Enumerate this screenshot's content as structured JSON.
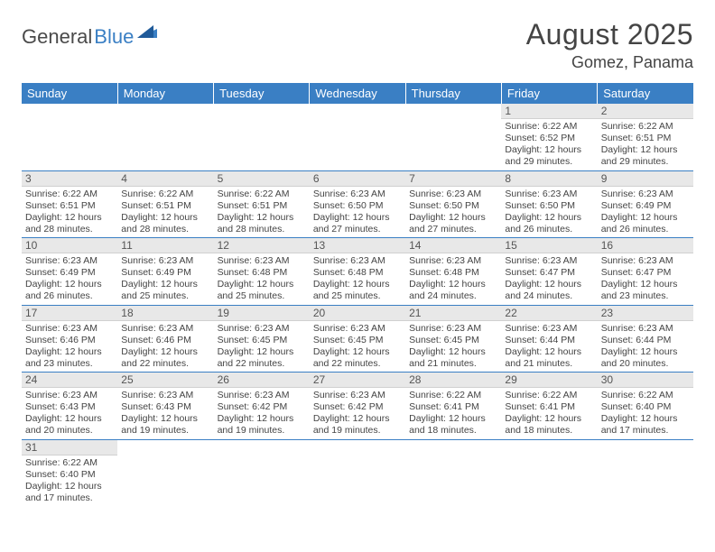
{
  "brand": {
    "part1": "General",
    "part2": "Blue"
  },
  "title": "August 2025",
  "location": "Gomez, Panama",
  "colors": {
    "header_bg": "#3a7fc4",
    "header_text": "#ffffff",
    "daynum_bg": "#e8e8e8",
    "text": "#444444",
    "row_border": "#3a7fc4"
  },
  "weekdays": [
    "Sunday",
    "Monday",
    "Tuesday",
    "Wednesday",
    "Thursday",
    "Friday",
    "Saturday"
  ],
  "weeks": [
    [
      null,
      null,
      null,
      null,
      null,
      {
        "n": "1",
        "sr": "6:22 AM",
        "ss": "6:52 PM",
        "dl": "12 hours and 29 minutes."
      },
      {
        "n": "2",
        "sr": "6:22 AM",
        "ss": "6:51 PM",
        "dl": "12 hours and 29 minutes."
      }
    ],
    [
      {
        "n": "3",
        "sr": "6:22 AM",
        "ss": "6:51 PM",
        "dl": "12 hours and 28 minutes."
      },
      {
        "n": "4",
        "sr": "6:22 AM",
        "ss": "6:51 PM",
        "dl": "12 hours and 28 minutes."
      },
      {
        "n": "5",
        "sr": "6:22 AM",
        "ss": "6:51 PM",
        "dl": "12 hours and 28 minutes."
      },
      {
        "n": "6",
        "sr": "6:23 AM",
        "ss": "6:50 PM",
        "dl": "12 hours and 27 minutes."
      },
      {
        "n": "7",
        "sr": "6:23 AM",
        "ss": "6:50 PM",
        "dl": "12 hours and 27 minutes."
      },
      {
        "n": "8",
        "sr": "6:23 AM",
        "ss": "6:50 PM",
        "dl": "12 hours and 26 minutes."
      },
      {
        "n": "9",
        "sr": "6:23 AM",
        "ss": "6:49 PM",
        "dl": "12 hours and 26 minutes."
      }
    ],
    [
      {
        "n": "10",
        "sr": "6:23 AM",
        "ss": "6:49 PM",
        "dl": "12 hours and 26 minutes."
      },
      {
        "n": "11",
        "sr": "6:23 AM",
        "ss": "6:49 PM",
        "dl": "12 hours and 25 minutes."
      },
      {
        "n": "12",
        "sr": "6:23 AM",
        "ss": "6:48 PM",
        "dl": "12 hours and 25 minutes."
      },
      {
        "n": "13",
        "sr": "6:23 AM",
        "ss": "6:48 PM",
        "dl": "12 hours and 25 minutes."
      },
      {
        "n": "14",
        "sr": "6:23 AM",
        "ss": "6:48 PM",
        "dl": "12 hours and 24 minutes."
      },
      {
        "n": "15",
        "sr": "6:23 AM",
        "ss": "6:47 PM",
        "dl": "12 hours and 24 minutes."
      },
      {
        "n": "16",
        "sr": "6:23 AM",
        "ss": "6:47 PM",
        "dl": "12 hours and 23 minutes."
      }
    ],
    [
      {
        "n": "17",
        "sr": "6:23 AM",
        "ss": "6:46 PM",
        "dl": "12 hours and 23 minutes."
      },
      {
        "n": "18",
        "sr": "6:23 AM",
        "ss": "6:46 PM",
        "dl": "12 hours and 22 minutes."
      },
      {
        "n": "19",
        "sr": "6:23 AM",
        "ss": "6:45 PM",
        "dl": "12 hours and 22 minutes."
      },
      {
        "n": "20",
        "sr": "6:23 AM",
        "ss": "6:45 PM",
        "dl": "12 hours and 22 minutes."
      },
      {
        "n": "21",
        "sr": "6:23 AM",
        "ss": "6:45 PM",
        "dl": "12 hours and 21 minutes."
      },
      {
        "n": "22",
        "sr": "6:23 AM",
        "ss": "6:44 PM",
        "dl": "12 hours and 21 minutes."
      },
      {
        "n": "23",
        "sr": "6:23 AM",
        "ss": "6:44 PM",
        "dl": "12 hours and 20 minutes."
      }
    ],
    [
      {
        "n": "24",
        "sr": "6:23 AM",
        "ss": "6:43 PM",
        "dl": "12 hours and 20 minutes."
      },
      {
        "n": "25",
        "sr": "6:23 AM",
        "ss": "6:43 PM",
        "dl": "12 hours and 19 minutes."
      },
      {
        "n": "26",
        "sr": "6:23 AM",
        "ss": "6:42 PM",
        "dl": "12 hours and 19 minutes."
      },
      {
        "n": "27",
        "sr": "6:23 AM",
        "ss": "6:42 PM",
        "dl": "12 hours and 19 minutes."
      },
      {
        "n": "28",
        "sr": "6:22 AM",
        "ss": "6:41 PM",
        "dl": "12 hours and 18 minutes."
      },
      {
        "n": "29",
        "sr": "6:22 AM",
        "ss": "6:41 PM",
        "dl": "12 hours and 18 minutes."
      },
      {
        "n": "30",
        "sr": "6:22 AM",
        "ss": "6:40 PM",
        "dl": "12 hours and 17 minutes."
      }
    ],
    [
      {
        "n": "31",
        "sr": "6:22 AM",
        "ss": "6:40 PM",
        "dl": "12 hours and 17 minutes."
      },
      null,
      null,
      null,
      null,
      null,
      null
    ]
  ],
  "labels": {
    "sunrise": "Sunrise:",
    "sunset": "Sunset:",
    "daylight": "Daylight:"
  }
}
